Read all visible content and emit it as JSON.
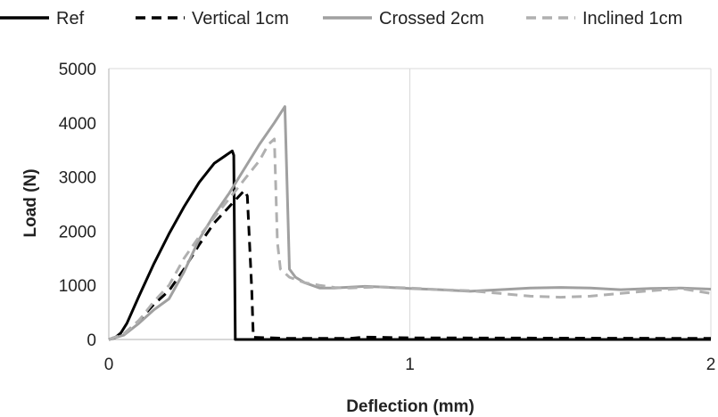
{
  "chart_data": {
    "type": "line",
    "title": "",
    "xlabel": "Deflection (mm)",
    "ylabel": "Load (N)",
    "xlim": [
      0,
      2
    ],
    "ylim": [
      0,
      5000
    ],
    "x_ticks": [
      0,
      1,
      2
    ],
    "y_ticks": [
      0,
      1000,
      2000,
      3000,
      4000,
      5000
    ],
    "x_tick_labels": [
      "0",
      "1",
      "2"
    ],
    "y_tick_labels": [
      "0",
      "1000",
      "2000",
      "3000",
      "4000",
      "5000"
    ],
    "grid": "vertical",
    "legend_position": "top",
    "series": [
      {
        "name": "Ref",
        "color": "#000000",
        "dash": "solid",
        "points": [
          [
            0,
            0
          ],
          [
            0.02,
            30
          ],
          [
            0.04,
            120
          ],
          [
            0.06,
            300
          ],
          [
            0.1,
            800
          ],
          [
            0.15,
            1400
          ],
          [
            0.2,
            1950
          ],
          [
            0.25,
            2450
          ],
          [
            0.3,
            2900
          ],
          [
            0.35,
            3250
          ],
          [
            0.41,
            3480
          ],
          [
            0.415,
            3400
          ],
          [
            0.42,
            0
          ],
          [
            2,
            0
          ]
        ]
      },
      {
        "name": "Vertical 1cm",
        "color": "#000000",
        "dash": "dashed",
        "points": [
          [
            0,
            0
          ],
          [
            0.05,
            100
          ],
          [
            0.1,
            350
          ],
          [
            0.15,
            650
          ],
          [
            0.2,
            900
          ],
          [
            0.25,
            1300
          ],
          [
            0.3,
            1750
          ],
          [
            0.35,
            2150
          ],
          [
            0.4,
            2450
          ],
          [
            0.45,
            2750
          ],
          [
            0.46,
            2650
          ],
          [
            0.475,
            900
          ],
          [
            0.48,
            40
          ],
          [
            0.6,
            20
          ],
          [
            0.8,
            20
          ],
          [
            0.85,
            45
          ],
          [
            1,
            30
          ],
          [
            1.5,
            25
          ],
          [
            2,
            20
          ]
        ]
      },
      {
        "name": "Crossed 2cm",
        "color": "#a0a0a0",
        "dash": "solid",
        "points": [
          [
            0,
            0
          ],
          [
            0.05,
            80
          ],
          [
            0.1,
            300
          ],
          [
            0.15,
            550
          ],
          [
            0.2,
            750
          ],
          [
            0.25,
            1250
          ],
          [
            0.3,
            1850
          ],
          [
            0.35,
            2300
          ],
          [
            0.4,
            2700
          ],
          [
            0.45,
            3150
          ],
          [
            0.5,
            3600
          ],
          [
            0.55,
            4000
          ],
          [
            0.585,
            4300
          ],
          [
            0.6,
            1300
          ],
          [
            0.62,
            1150
          ],
          [
            0.65,
            1050
          ],
          [
            0.7,
            950
          ],
          [
            0.75,
            950
          ],
          [
            0.85,
            980
          ],
          [
            0.9,
            970
          ],
          [
            1,
            940
          ],
          [
            1.1,
            920
          ],
          [
            1.2,
            890
          ],
          [
            1.3,
            920
          ],
          [
            1.4,
            950
          ],
          [
            1.5,
            960
          ],
          [
            1.6,
            950
          ],
          [
            1.7,
            920
          ],
          [
            1.8,
            940
          ],
          [
            1.9,
            950
          ],
          [
            2,
            930
          ]
        ]
      },
      {
        "name": "Inclined 1cm",
        "color": "#b0b0b0",
        "dash": "dashed",
        "points": [
          [
            0,
            0
          ],
          [
            0.05,
            100
          ],
          [
            0.1,
            350
          ],
          [
            0.15,
            700
          ],
          [
            0.2,
            1000
          ],
          [
            0.25,
            1500
          ],
          [
            0.3,
            1900
          ],
          [
            0.35,
            2250
          ],
          [
            0.4,
            2600
          ],
          [
            0.45,
            2950
          ],
          [
            0.5,
            3300
          ],
          [
            0.53,
            3600
          ],
          [
            0.55,
            3700
          ],
          [
            0.56,
            1800
          ],
          [
            0.57,
            1300
          ],
          [
            0.6,
            1150
          ],
          [
            0.65,
            1050
          ],
          [
            0.7,
            1000
          ],
          [
            0.75,
            960
          ],
          [
            0.8,
            950
          ],
          [
            0.9,
            970
          ],
          [
            1,
            950
          ],
          [
            1.1,
            920
          ],
          [
            1.2,
            900
          ],
          [
            1.3,
            850
          ],
          [
            1.4,
            800
          ],
          [
            1.5,
            780
          ],
          [
            1.6,
            800
          ],
          [
            1.7,
            850
          ],
          [
            1.8,
            900
          ],
          [
            1.9,
            940
          ],
          [
            2,
            850
          ]
        ]
      }
    ]
  }
}
